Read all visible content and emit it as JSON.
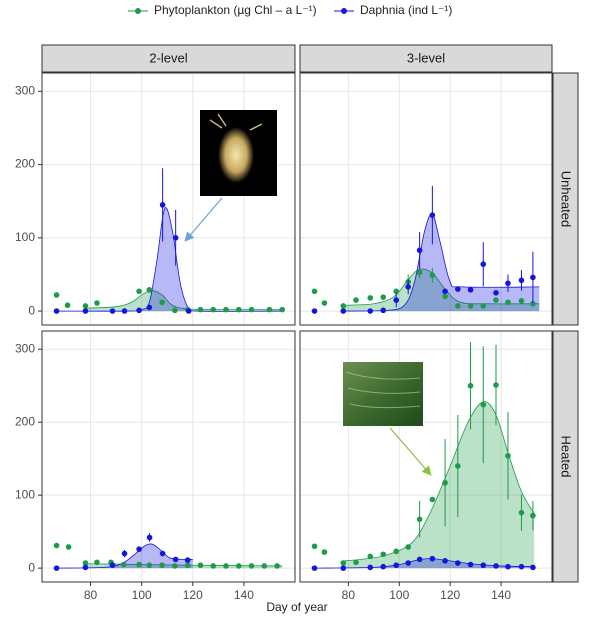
{
  "legend_title": null,
  "x_label": "Day of year",
  "facets": {
    "columns": [
      "2-level",
      "3-level"
    ],
    "rows": [
      "Unheated",
      "Heated"
    ]
  },
  "chart_data": [
    {
      "type": "scatter",
      "xlim": [
        61,
        160
      ],
      "ylim": [
        -19,
        325
      ],
      "xticks": [
        80,
        100,
        120,
        140
      ],
      "yticks": [
        0,
        100,
        200,
        300
      ],
      "grid": true,
      "series": [
        {
          "name": "Phytoplankton (µg Chl – a L⁻¹)",
          "color": "#1e9a4a",
          "x": [
            66.7,
            71,
            78,
            82.5,
            99,
            103,
            108,
            113,
            118,
            123,
            128,
            133,
            138,
            143,
            150,
            155
          ],
          "values": [
            22,
            8,
            7,
            11,
            27,
            29,
            12,
            1,
            2,
            2,
            2,
            2,
            2,
            2,
            2,
            2
          ],
          "fit_x": [
            78,
            90,
            96,
            100,
            104,
            108,
            112,
            118,
            130,
            155
          ],
          "fit": [
            4,
            6,
            12,
            22,
            28,
            22,
            8,
            3,
            2,
            2
          ]
        },
        {
          "name": "Daphnia (ind L⁻¹)",
          "color": "#1515e0",
          "x": [
            66.7,
            78,
            88.6,
            93.3,
            99,
            103,
            108.2,
            113.3,
            118.4
          ],
          "values": [
            0,
            0,
            0,
            0,
            1,
            5,
            145,
            100,
            0
          ],
          "errors": [
            null,
            null,
            null,
            null,
            null,
            null,
            50,
            38,
            null
          ],
          "fit_x": [
            66.7,
            95,
            100,
            103,
            106,
            109,
            112,
            115,
            118,
            122,
            155
          ],
          "fit": [
            0,
            0,
            2,
            12,
            70,
            140,
            110,
            40,
            6,
            0,
            0
          ]
        }
      ]
    },
    {
      "type": "scatter",
      "xlim": [
        61,
        160
      ],
      "ylim": [
        -19,
        325
      ],
      "xticks": [
        80,
        100,
        120,
        140
      ],
      "yticks": [
        0,
        100,
        200,
        300
      ],
      "grid": true,
      "series": [
        {
          "name": "Phytoplankton (µg Chl – a L⁻¹)",
          "color": "#1e9a4a",
          "x": [
            66.7,
            70.6,
            78,
            83,
            88.6,
            93.7,
            98.8,
            103.5,
            108,
            113,
            118,
            123,
            128,
            133,
            138,
            142.7,
            148,
            152.5
          ],
          "values": [
            27,
            11,
            7,
            15,
            18,
            19,
            27,
            40,
            53,
            49,
            20,
            7,
            7,
            7,
            15,
            12,
            14,
            10
          ],
          "errors": [
            null,
            null,
            null,
            null,
            null,
            null,
            null,
            10,
            8,
            10,
            null,
            null,
            null,
            null,
            null,
            null,
            null,
            null
          ],
          "fit_x": [
            78,
            90,
            98,
            104,
            108,
            113,
            118,
            124,
            135,
            155
          ],
          "fit": [
            8,
            10,
            20,
            45,
            57,
            52,
            30,
            12,
            10,
            10
          ]
        },
        {
          "name": "Daphnia (ind L⁻¹)",
          "color": "#1515e0",
          "x": [
            66.7,
            78,
            88.6,
            93.7,
            98.8,
            103.5,
            108,
            113,
            118,
            123,
            128,
            133,
            138,
            142.7,
            148,
            152.5
          ],
          "values": [
            0,
            0,
            0,
            1,
            15,
            33,
            83,
            131,
            27,
            30,
            29,
            64,
            25,
            38,
            42,
            46
          ],
          "errors": [
            null,
            null,
            null,
            null,
            10,
            10,
            25,
            40,
            null,
            null,
            null,
            30,
            null,
            12,
            14,
            35
          ],
          "fit_x": [
            78,
            95,
            102,
            106,
            110,
            113,
            116,
            120,
            125,
            155
          ],
          "fit": [
            0,
            1,
            8,
            40,
            110,
            132,
            95,
            40,
            33,
            33
          ]
        }
      ]
    },
    {
      "type": "scatter",
      "xlim": [
        61,
        160
      ],
      "ylim": [
        -19,
        325
      ],
      "xticks": [
        80,
        100,
        120,
        140
      ],
      "yticks": [
        0,
        100,
        200,
        300
      ],
      "grid": true,
      "series": [
        {
          "name": "Phytoplankton (µg Chl – a L⁻¹)",
          "color": "#1e9a4a",
          "x": [
            66.7,
            71.4,
            78,
            82.5,
            88,
            93,
            99,
            103,
            108,
            113,
            118,
            123,
            128,
            133,
            138,
            143,
            148,
            153
          ],
          "values": [
            31,
            29,
            7,
            8,
            8,
            5,
            5,
            4,
            4,
            3,
            4,
            4,
            3,
            3,
            3,
            3,
            3,
            3
          ],
          "fit_x": [
            78,
            100,
            120,
            155
          ],
          "fit": [
            6,
            5,
            4,
            3
          ]
        },
        {
          "name": "Daphnia (ind L⁻¹)",
          "color": "#1515e0",
          "x": [
            66.7,
            78,
            88.6,
            93.3,
            99,
            103.1,
            108.2,
            113.3,
            118
          ],
          "values": [
            0,
            1,
            4,
            20,
            26,
            42,
            20,
            12,
            11
          ],
          "errors": [
            null,
            null,
            null,
            5,
            null,
            6,
            null,
            null,
            null
          ],
          "fit_x": [
            66.7,
            85,
            92,
            97,
            101,
            104,
            107,
            111,
            116,
            120
          ],
          "fit": [
            0,
            1,
            6,
            18,
            30,
            33,
            26,
            14,
            12,
            12
          ]
        }
      ]
    },
    {
      "type": "scatter",
      "xlim": [
        61,
        160
      ],
      "ylim": [
        -19,
        325
      ],
      "xticks": [
        80,
        100,
        120,
        140
      ],
      "yticks": [
        0,
        100,
        200,
        300
      ],
      "grid": true,
      "series": [
        {
          "name": "Phytoplankton (µg Chl – a L⁻¹)",
          "color": "#1e9a4a",
          "x": [
            66.7,
            70.6,
            78,
            83,
            88.6,
            93.7,
            98.8,
            103.5,
            108,
            113,
            118,
            123,
            128,
            133,
            138,
            142.7,
            148,
            152.5
          ],
          "values": [
            30,
            22,
            7,
            8,
            16,
            19,
            23,
            29,
            67,
            94,
            117,
            140,
            250,
            224,
            251,
            154,
            76,
            72
          ],
          "errors": [
            null,
            null,
            null,
            null,
            null,
            null,
            null,
            null,
            25,
            null,
            60,
            70,
            60,
            80,
            55,
            60,
            25,
            20
          ],
          "fit_x": [
            78,
            85,
            95,
            105,
            112,
            120,
            127,
            133,
            138,
            143,
            148,
            153
          ],
          "fit": [
            10,
            12,
            18,
            35,
            75,
            140,
            200,
            228,
            210,
            155,
            105,
            75
          ]
        },
        {
          "name": "Daphnia (ind L⁻¹)",
          "color": "#1515e0",
          "x": [
            66.7,
            78,
            88.6,
            93.7,
            98.8,
            103.5,
            108,
            113,
            118,
            123,
            128,
            133,
            138,
            142.7,
            148,
            152.5
          ],
          "values": [
            0,
            0,
            1,
            2,
            4,
            7,
            12,
            13,
            10,
            7,
            5,
            4,
            3,
            2,
            2,
            1
          ],
          "fit_x": [
            66.7,
            90,
            100,
            107,
            112,
            118,
            128,
            140,
            153
          ],
          "fit": [
            0,
            1,
            5,
            11,
            13,
            11,
            6,
            3,
            2
          ]
        }
      ]
    }
  ]
}
